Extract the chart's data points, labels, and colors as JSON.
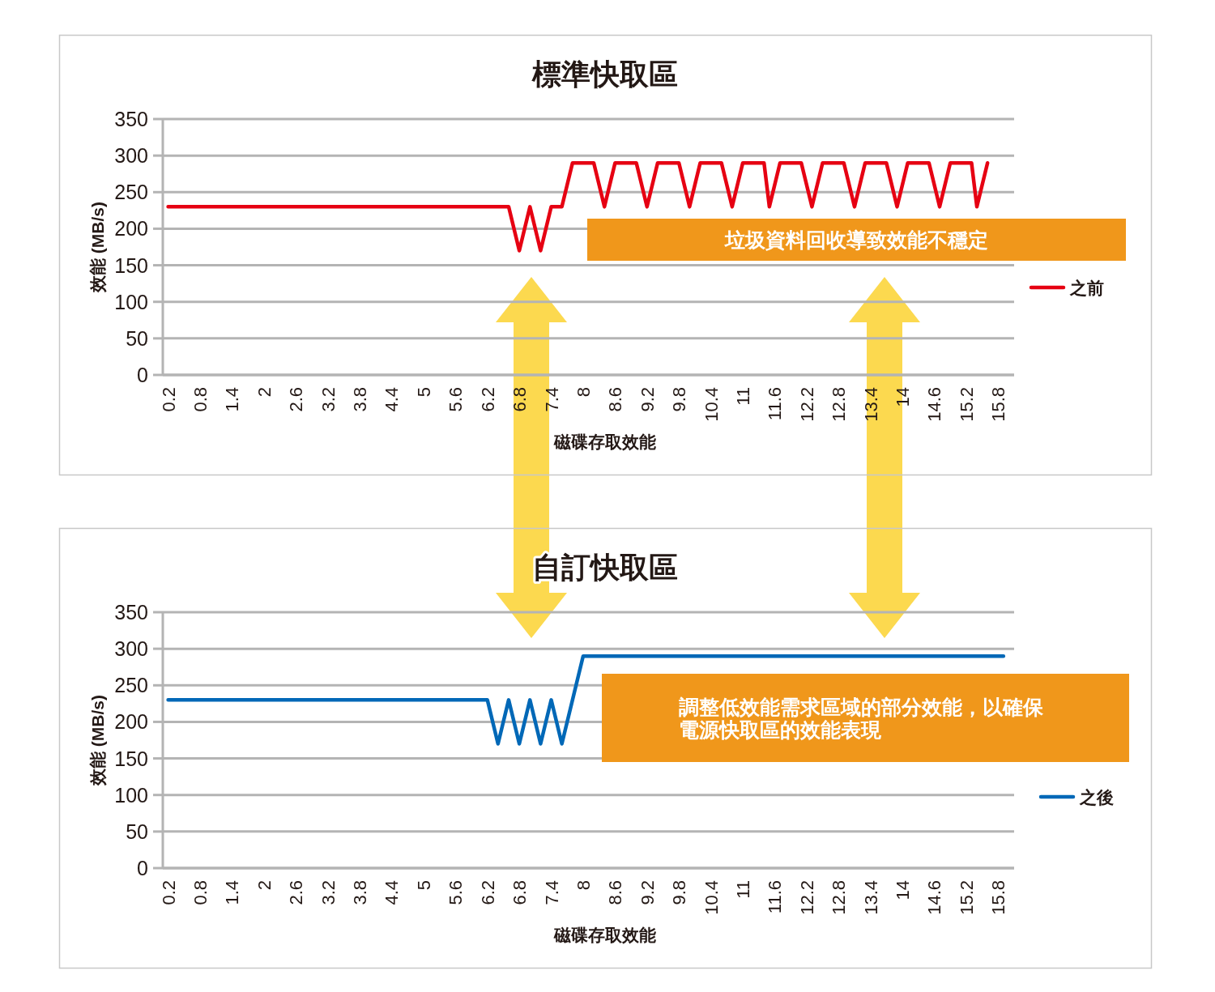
{
  "chart_data": [
    {
      "type": "line",
      "title": "標準快取區",
      "xlabel": "磁碟存取效能",
      "ylabel": "效能 (MB/s)",
      "xlim": [
        0.1,
        16.1
      ],
      "xticks": [
        0.2,
        0.8,
        1.4,
        2,
        2.6,
        3.2,
        3.8,
        4.4,
        5,
        5.6,
        6.2,
        6.8,
        7.4,
        8,
        8.6,
        9.2,
        9.8,
        10.4,
        11,
        11.6,
        12.2,
        12.8,
        13.4,
        14,
        14.6,
        15.2,
        15.8
      ],
      "ylim": [
        0,
        350
      ],
      "yticks": [
        0,
        50,
        100,
        150,
        200,
        250,
        300,
        350
      ],
      "grid": "y",
      "legend": "right",
      "annotations": [
        "垃圾資料回收導致效能不穩定"
      ],
      "series": [
        {
          "name": "之前",
          "color": "#e60012",
          "x": [
            0.2,
            6.6,
            6.8,
            7.0,
            7.2,
            7.4,
            7.6,
            7.8,
            8.2,
            8.4,
            8.6,
            9.0,
            9.2,
            9.4,
            9.8,
            10.0,
            10.2,
            10.6,
            10.8,
            11.0,
            11.4,
            11.5,
            11.7,
            12.1,
            12.3,
            12.5,
            12.9,
            13.1,
            13.3,
            13.7,
            13.9,
            14.1,
            14.5,
            14.7,
            14.9,
            15.3,
            15.4,
            15.6
          ],
          "values": [
            230,
            230,
            170,
            230,
            170,
            230,
            230,
            290,
            290,
            230,
            290,
            290,
            230,
            290,
            290,
            230,
            290,
            290,
            230,
            290,
            290,
            230,
            290,
            290,
            230,
            290,
            290,
            230,
            290,
            290,
            230,
            290,
            290,
            230,
            290,
            290,
            230,
            290
          ]
        }
      ]
    },
    {
      "type": "line",
      "title": "自訂快取區",
      "xlabel": "磁碟存取效能",
      "ylabel": "效能 (MB/s)",
      "xlim": [
        0.1,
        16.1
      ],
      "xticks": [
        0.2,
        0.8,
        1.4,
        2,
        2.6,
        3.2,
        3.8,
        4.4,
        5,
        5.6,
        6.2,
        6.8,
        7.4,
        8,
        8.6,
        9.2,
        9.8,
        10.4,
        11,
        11.6,
        12.2,
        12.8,
        13.4,
        14,
        14.6,
        15.2,
        15.8
      ],
      "ylim": [
        0,
        350
      ],
      "yticks": [
        0,
        50,
        100,
        150,
        200,
        250,
        300,
        350
      ],
      "grid": "y",
      "legend": "right",
      "annotations": [
        "調整低效能需求區域的部分效能，以確保電源快取區的效能表現"
      ],
      "series": [
        {
          "name": "之後",
          "color": "#0068b7",
          "x": [
            0.2,
            6.2,
            6.4,
            6.6,
            6.8,
            7.0,
            7.2,
            7.4,
            7.6,
            8.0,
            15.9
          ],
          "values": [
            230,
            230,
            170,
            230,
            170,
            230,
            170,
            230,
            170,
            290,
            290
          ]
        }
      ]
    }
  ]
}
